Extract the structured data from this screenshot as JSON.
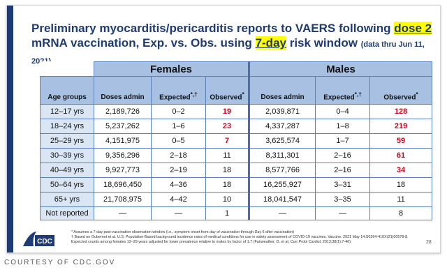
{
  "title": {
    "line1_a": "Preliminary myocarditis/pericarditis reports to VAERS following ",
    "line1_hl": "dose 2",
    "line2_a": "mRNA vaccination, Exp. vs. Obs. using ",
    "line2_hl": "7-day",
    "line2_b": " risk window ",
    "line2_small": "(data thru Jun 11, 2021)"
  },
  "table": {
    "group_females": "Females",
    "group_males": "Males",
    "col_age": "Age groups",
    "col_doses": "Doses admin",
    "col_expected": "Expected",
    "col_expected_sup": "*,†",
    "col_observed": "Observed",
    "col_observed_sup": "*",
    "rows": [
      {
        "age": "12–17 yrs",
        "f_doses": "2,189,726",
        "f_exp": "0–2",
        "f_obs": "19",
        "f_red": true,
        "m_doses": "2,039,871",
        "m_exp": "0–4",
        "m_obs": "128",
        "m_red": true
      },
      {
        "age": "18–24 yrs",
        "f_doses": "5,237,262",
        "f_exp": "1–6",
        "f_obs": "23",
        "f_red": true,
        "m_doses": "4,337,287",
        "m_exp": "1–8",
        "m_obs": "219",
        "m_red": true
      },
      {
        "age": "25–29 yrs",
        "f_doses": "4,151,975",
        "f_exp": "0–5",
        "f_obs": "7",
        "f_red": true,
        "m_doses": "3,625,574",
        "m_exp": "1–7",
        "m_obs": "59",
        "m_red": true
      },
      {
        "age": "30–39 yrs",
        "f_doses": "9,356,296",
        "f_exp": "2–18",
        "f_obs": "11",
        "f_red": false,
        "m_doses": "8,311,301",
        "m_exp": "2–16",
        "m_obs": "61",
        "m_red": true
      },
      {
        "age": "40–49 yrs",
        "f_doses": "9,927,773",
        "f_exp": "2–19",
        "f_obs": "18",
        "f_red": false,
        "m_doses": "8,577,766",
        "m_exp": "2–16",
        "m_obs": "34",
        "m_red": true
      },
      {
        "age": "50–64 yrs",
        "f_doses": "18,696,450",
        "f_exp": "4–36",
        "f_obs": "18",
        "f_red": false,
        "m_doses": "16,255,927",
        "m_exp": "3–31",
        "m_obs": "18",
        "m_red": false
      },
      {
        "age": "65+ yrs",
        "f_doses": "21,708,975",
        "f_exp": "4–42",
        "f_obs": "10",
        "f_red": false,
        "m_doses": "18,041,547",
        "m_exp": "3–35",
        "m_obs": "11",
        "m_red": false
      }
    ],
    "not_reported": {
      "age": "Not reported",
      "f_doses": "—",
      "f_exp": "—",
      "f_obs": "1",
      "m_doses": "—",
      "m_exp": "—",
      "m_obs": "8"
    }
  },
  "logo_text": "CDC",
  "footnotes": [
    "* Assumes a 7-day post-vaccination observation window (i.e., symptom onset from day of vaccination through Day 6 after vaccination)",
    "† Based on Gubernot et al. U.S. Population-Based background incidence rates of medical conditions for use in safety assessment of COVID-19 vaccines. Vaccine. 2021 May 14:S0264-410X(21)00578-8. Expected counts among females 12–29 years adjusted for lower prevalence relative to males by factor of 1.7 (Fairweather, D. et al, Curr Probl Cardiol. 2013;38(1):7-46)."
  ],
  "page_number": "28",
  "courtesy": "COURTESY OF CDC.GOV",
  "colors": {
    "title": "#1f3b73",
    "header": "#a8c0e1",
    "label": "#dbe6f4",
    "highlight": "#ffff00",
    "red": "#d0021b"
  }
}
